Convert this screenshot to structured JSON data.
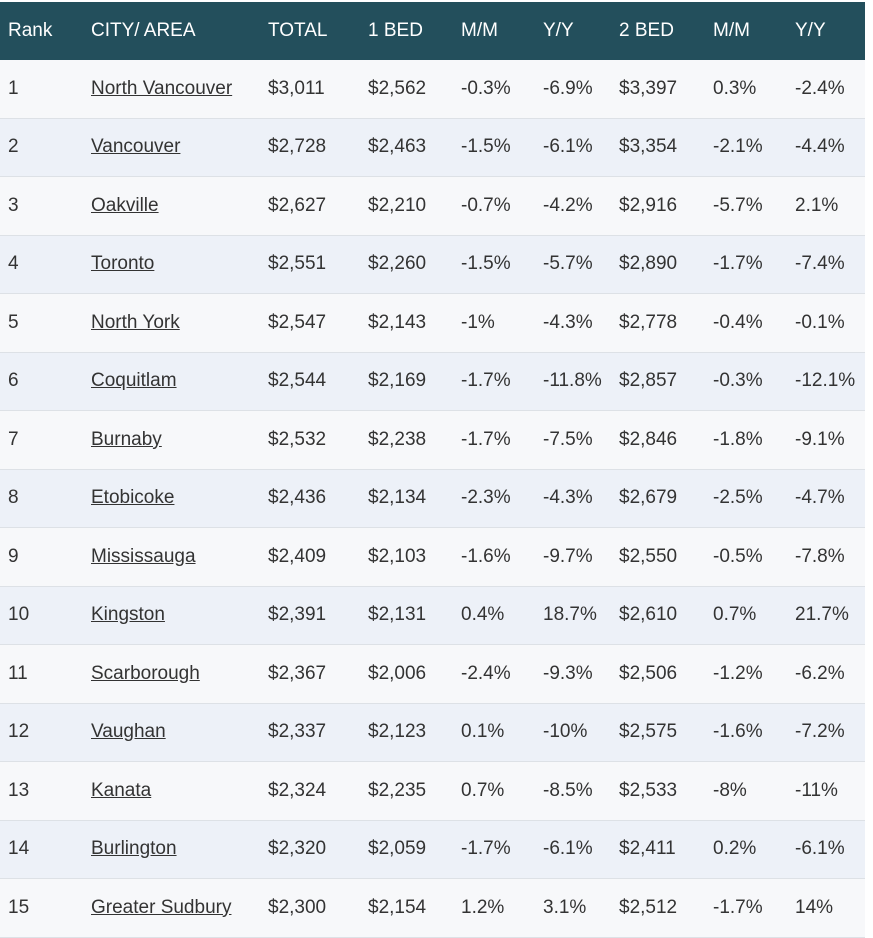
{
  "table": {
    "header": [
      "Rank",
      "CITY/ AREA",
      "TOTAL",
      "1 BED",
      "M/M",
      "Y/Y",
      "2 BED",
      "M/M",
      "Y/Y"
    ],
    "rows": [
      [
        "1",
        "North Vancouver",
        "$3,011",
        "$2,562",
        "-0.3%",
        "-6.9%",
        "$3,397",
        "0.3%",
        "-2.4%"
      ],
      [
        "2",
        "Vancouver",
        "$2,728",
        "$2,463",
        "-1.5%",
        "-6.1%",
        "$3,354",
        "-2.1%",
        "-4.4%"
      ],
      [
        "3",
        "Oakville",
        "$2,627",
        "$2,210",
        "-0.7%",
        "-4.2%",
        "$2,916",
        "-5.7%",
        "2.1%"
      ],
      [
        "4",
        "Toronto",
        "$2,551",
        "$2,260",
        "-1.5%",
        "-5.7%",
        "$2,890",
        "-1.7%",
        "-7.4%"
      ],
      [
        "5",
        "North York",
        "$2,547",
        "$2,143",
        "-1%",
        "-4.3%",
        "$2,778",
        "-0.4%",
        "-0.1%"
      ],
      [
        "6",
        "Coquitlam",
        "$2,544",
        "$2,169",
        "-1.7%",
        "-11.8%",
        "$2,857",
        "-0.3%",
        "-12.1%"
      ],
      [
        "7",
        "Burnaby",
        "$2,532",
        "$2,238",
        "-1.7%",
        "-7.5%",
        "$2,846",
        "-1.8%",
        "-9.1%"
      ],
      [
        "8",
        "Etobicoke",
        "$2,436",
        "$2,134",
        "-2.3%",
        "-4.3%",
        "$2,679",
        "-2.5%",
        "-4.7%"
      ],
      [
        "9",
        "Mississauga",
        "$2,409",
        "$2,103",
        "-1.6%",
        "-9.7%",
        "$2,550",
        "-0.5%",
        "-7.8%"
      ],
      [
        "10",
        "Kingston",
        "$2,391",
        "$2,131",
        "0.4%",
        "18.7%",
        "$2,610",
        "0.7%",
        "21.7%"
      ],
      [
        "11",
        "Scarborough",
        "$2,367",
        "$2,006",
        "-2.4%",
        "-9.3%",
        "$2,506",
        "-1.2%",
        "-6.2%"
      ],
      [
        "12",
        "Vaughan",
        "$2,337",
        "$2,123",
        "0.1%",
        "-10%",
        "$2,575",
        "-1.6%",
        "-7.2%"
      ],
      [
        "13",
        "Kanata",
        "$2,324",
        "$2,235",
        "0.7%",
        "-8.5%",
        "$2,533",
        "-8%",
        "-11%"
      ],
      [
        "14",
        "Burlington",
        "$2,320",
        "$2,059",
        "-1.7%",
        "-6.1%",
        "$2,411",
        "0.2%",
        "-6.1%"
      ],
      [
        "15",
        "Greater Sudbury",
        "$2,300",
        "$2,154",
        "1.2%",
        "3.1%",
        "$2,512",
        "-1.7%",
        "14%"
      ]
    ]
  }
}
